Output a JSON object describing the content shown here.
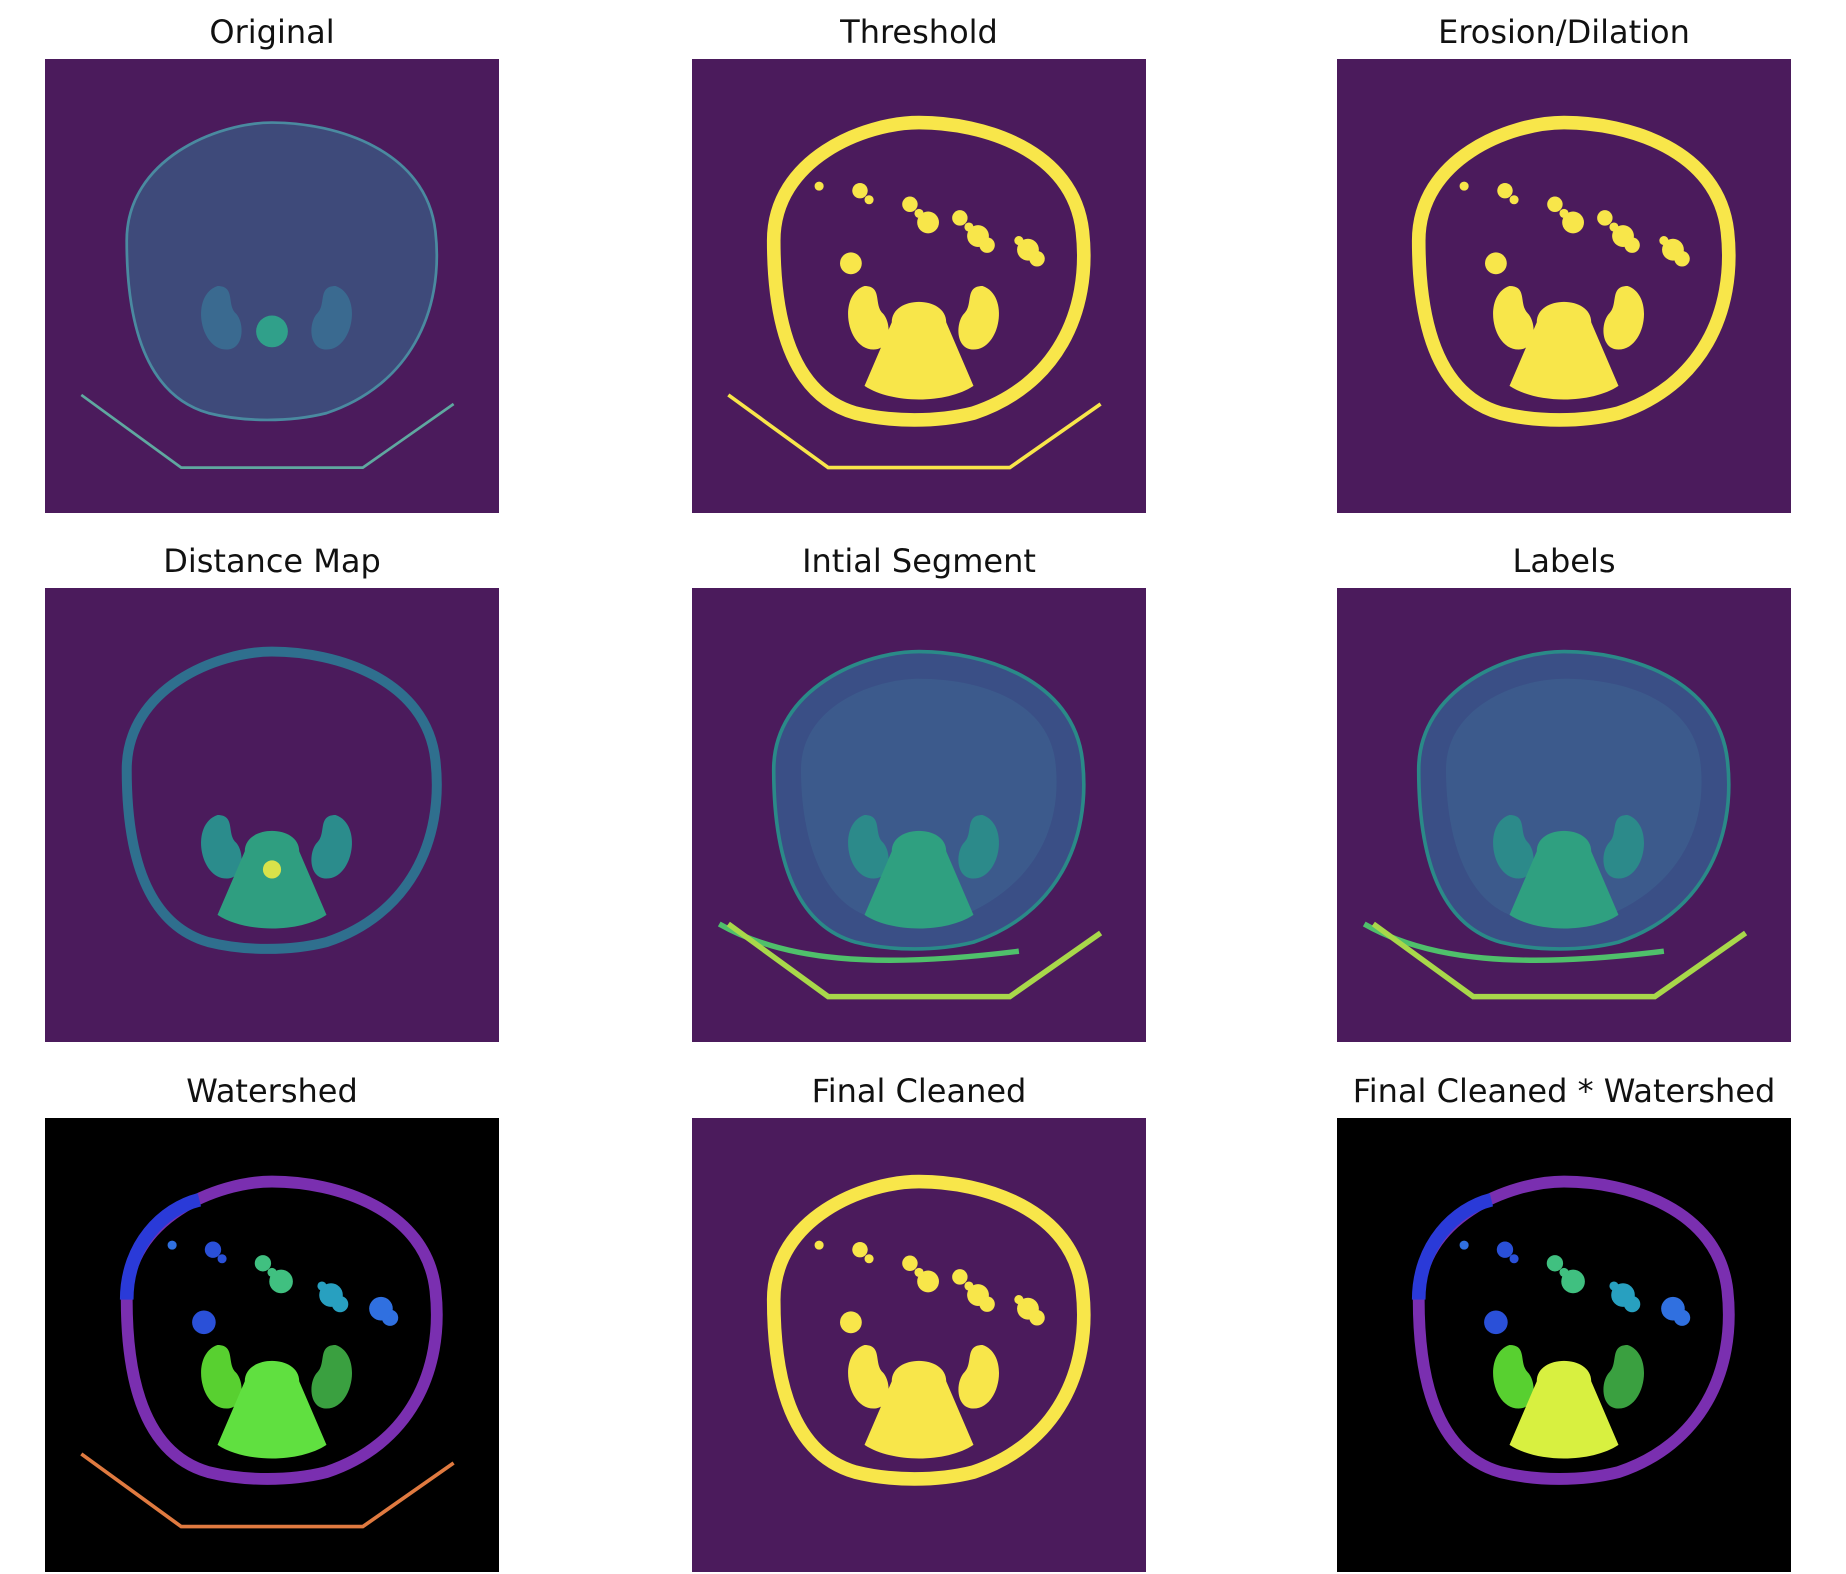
{
  "panels": [
    {
      "title": "Original",
      "style": "original"
    },
    {
      "title": "Threshold",
      "style": "threshold"
    },
    {
      "title": "Erosion/Dilation",
      "style": "erosion"
    },
    {
      "title": "Distance Map",
      "style": "distance"
    },
    {
      "title": "Intial Segment",
      "style": "segment"
    },
    {
      "title": "Labels",
      "style": "labels"
    },
    {
      "title": "Watershed",
      "style": "watershed"
    },
    {
      "title": "Final Cleaned",
      "style": "cleaned"
    },
    {
      "title": "Final Cleaned * Watershed",
      "style": "product"
    }
  ],
  "colors": {
    "viridis_bg": "#4b1b5c",
    "viridis_yellow": "#f8e64a",
    "viridis_teal": "#2c8a8a",
    "viridis_green": "#4fc06b",
    "black_bg": "#000000"
  }
}
